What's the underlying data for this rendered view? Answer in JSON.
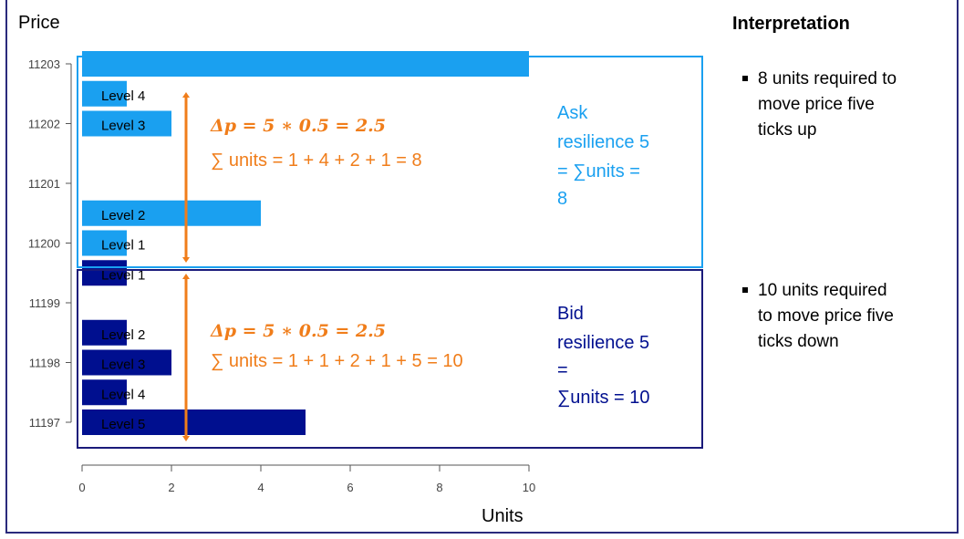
{
  "panel": {
    "interpretation_title": "Interpretation",
    "bullets": [
      {
        "lines": [
          "8 units required to",
          "move price five",
          "ticks up"
        ]
      },
      {
        "lines": [
          "10 units required",
          "to move price five",
          "ticks down"
        ]
      }
    ]
  },
  "chart_data": {
    "type": "bar",
    "orientation": "horizontal",
    "ylabel": "Price",
    "xlabel": "Units",
    "xlim": [
      0,
      10
    ],
    "xticks": [
      0,
      2,
      4,
      6,
      8,
      10
    ],
    "ylim": [
      11197,
      11203
    ],
    "yticks": [
      11197,
      11198,
      11199,
      11200,
      11201,
      11202,
      11203
    ],
    "grid": false,
    "ask_bars": [
      {
        "price": 11203.0,
        "units": 10,
        "label": ""
      },
      {
        "price": 11202.5,
        "units": 1,
        "label": "Level 4"
      },
      {
        "price": 11202.0,
        "units": 2,
        "label": "Level 3"
      },
      {
        "price": 11200.5,
        "units": 4,
        "label": "Level 2"
      },
      {
        "price": 11200.0,
        "units": 1,
        "label": "Level 1"
      }
    ],
    "bid_bars": [
      {
        "price": 11199.5,
        "units": 1,
        "label": "Level 1"
      },
      {
        "price": 11198.5,
        "units": 1,
        "label": "Level 2"
      },
      {
        "price": 11198.0,
        "units": 2,
        "label": "Level 3"
      },
      {
        "price": 11197.5,
        "units": 1,
        "label": "Level 4"
      },
      {
        "price": 11197.0,
        "units": 5,
        "label": "Level 5"
      }
    ],
    "colors": {
      "ask": "#1aa0f0",
      "bid": "#000f8f",
      "annotation": "#f07d1a",
      "box_ask": "#1aa0f0",
      "box_bid": "#1a1a7a"
    },
    "annotations": {
      "ask_delta": "Δp = 5 ∗ 0.5 = 2.5",
      "ask_sum": "∑ units = 1 + 4 + 2 + 1  = 8",
      "bid_delta": "Δp = 5 ∗ 0.5 = 2.5",
      "bid_sum": "∑ units = 1 + 1 + 2 + 1 +  5 = 10",
      "ask_res": [
        "Ask",
        "resilience 5",
        "= ∑units =",
        "8"
      ],
      "bid_res": [
        "Bid",
        "resilience 5",
        "=",
        "∑units =  10"
      ]
    }
  }
}
